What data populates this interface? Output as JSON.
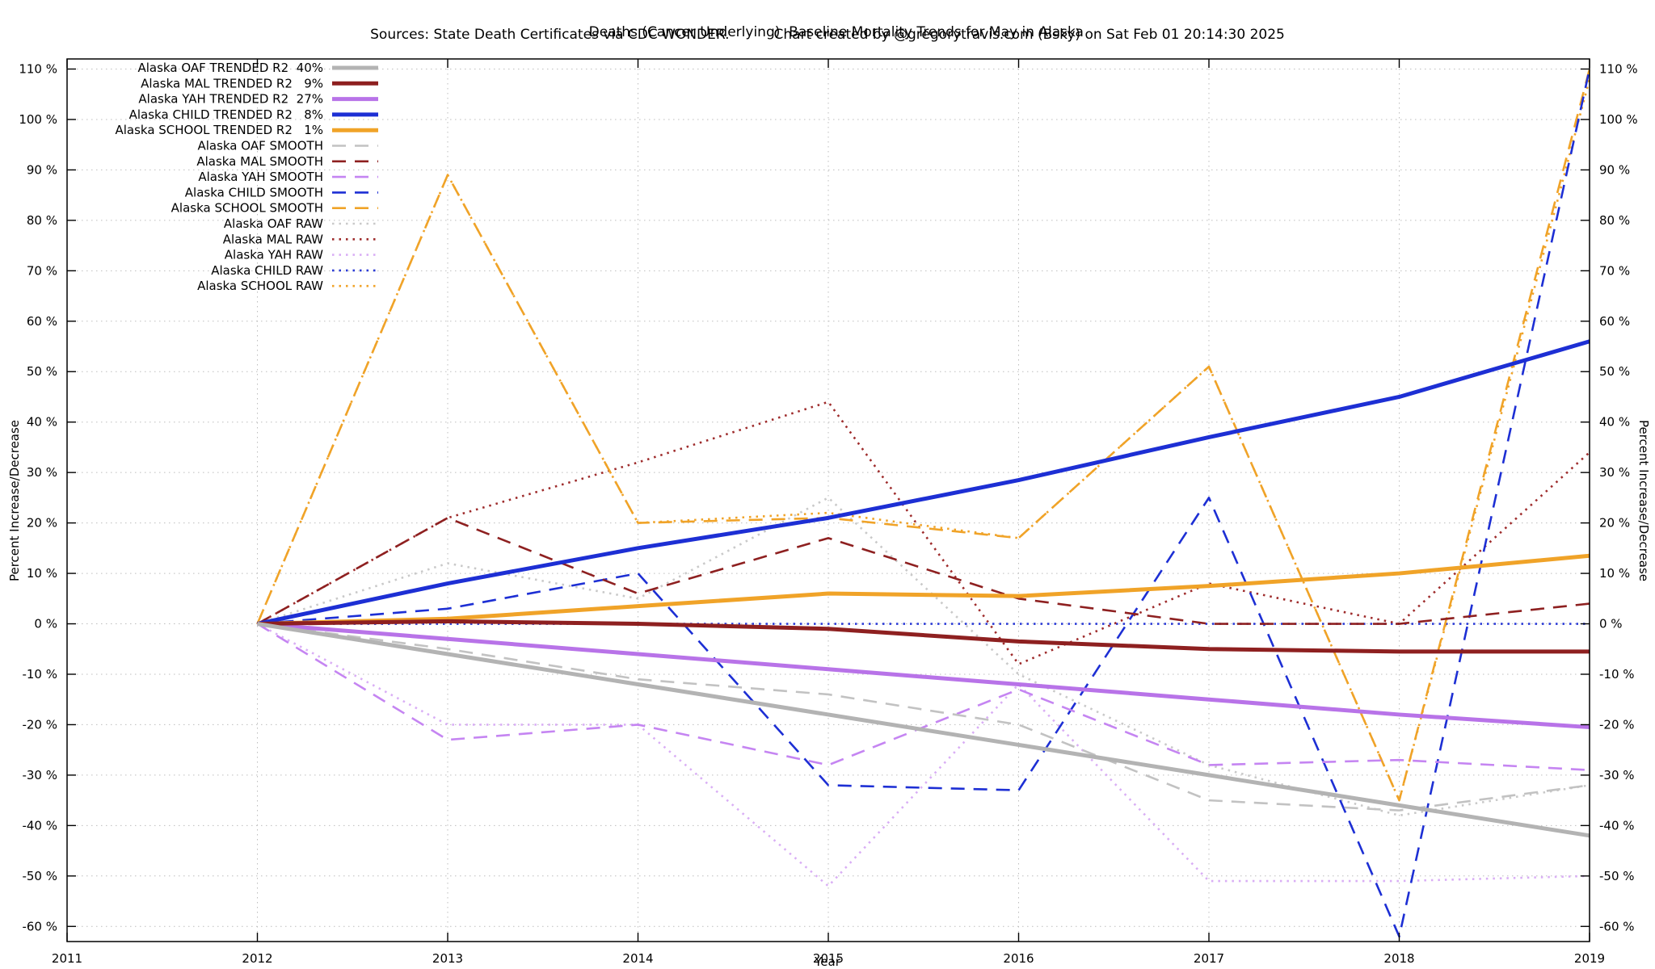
{
  "title": {
    "line1": "Deaths (Cancer Underlying)  Baseline Mortality Trends for May in Alaska",
    "line2_sources": "Sources: State Death Certificates via CDC WONDER.",
    "line2_credit": "Chart created by @gregorytravis.com (Bsky) on Sat Feb 01 20:14:30 2025"
  },
  "axes": {
    "x_label": "Year",
    "y_label_left": "Percent Increase/Decrease",
    "y_label_right": "Percent Increase/Decrease"
  },
  "chart_data": {
    "type": "line",
    "x": [
      2012,
      2013,
      2014,
      2015,
      2016,
      2017,
      2018,
      2019
    ],
    "x_ticks": [
      2011,
      2012,
      2013,
      2014,
      2015,
      2016,
      2017,
      2018,
      2019
    ],
    "xlim": [
      2011,
      2019
    ],
    "y_ticks": [
      -60,
      -50,
      -40,
      -30,
      -20,
      -10,
      0,
      10,
      20,
      30,
      40,
      50,
      60,
      70,
      80,
      90,
      100,
      110
    ],
    "y_tick_suffix": " %",
    "ylim": [
      -63,
      112
    ],
    "grid": true,
    "legend_position": "top-left",
    "series": [
      {
        "id": "oaf-trended",
        "name": "Alaska OAF TRENDED R2  40%",
        "style": "solid",
        "width": 5,
        "color": "#b3b3b3",
        "values": [
          0,
          -6,
          -12,
          -18,
          -24,
          -30,
          -36,
          -42
        ]
      },
      {
        "id": "mal-trended",
        "name": "Alaska MAL TRENDED R2   9%",
        "style": "solid",
        "width": 5,
        "color": "#8e2020",
        "values": [
          0,
          0.5,
          0,
          -1,
          -3.5,
          -5,
          -5.5,
          -5.5
        ]
      },
      {
        "id": "yah-trended",
        "name": "Alaska YAH TRENDED R2  27%",
        "style": "solid",
        "width": 5,
        "color": "#b873e8",
        "values": [
          0,
          -3,
          -6,
          -9,
          -12,
          -15,
          -18,
          -20.5
        ]
      },
      {
        "id": "child-trended",
        "name": "Alaska CHILD TRENDED R2   8%",
        "style": "solid",
        "width": 5,
        "color": "#1d2fd4",
        "values": [
          0,
          8,
          15,
          21,
          28.5,
          37,
          45,
          56
        ]
      },
      {
        "id": "school-trended",
        "name": "Alaska SCHOOL TRENDED R2   1%",
        "style": "solid",
        "width": 5,
        "color": "#f0a328",
        "values": [
          0,
          1,
          3.5,
          6,
          5.5,
          7.5,
          10,
          13.5
        ]
      },
      {
        "id": "oaf-smooth",
        "name": "Alaska OAF SMOOTH",
        "style": "dashed",
        "width": 2.6,
        "color": "#c2c2c2",
        "values": [
          0,
          -5,
          -11,
          -14,
          -20,
          -35,
          -37,
          -32
        ]
      },
      {
        "id": "mal-smooth",
        "name": "Alaska MAL SMOOTH",
        "style": "dashed",
        "width": 2.6,
        "color": "#8e2020",
        "values": [
          0,
          21,
          6,
          17,
          5,
          0,
          0,
          4
        ]
      },
      {
        "id": "yah-smooth",
        "name": "Alaska YAH SMOOTH",
        "style": "dashed",
        "width": 2.6,
        "color": "#c585f2",
        "values": [
          0,
          -23,
          -20,
          -28,
          -13,
          -28,
          -27,
          -29
        ]
      },
      {
        "id": "child-smooth",
        "name": "Alaska CHILD SMOOTH",
        "style": "dashed",
        "width": 2.6,
        "color": "#1d2fd4",
        "values": [
          0,
          3,
          10,
          -32,
          -33,
          25,
          -62,
          110
        ]
      },
      {
        "id": "school-smooth",
        "name": "Alaska SCHOOL SMOOTH",
        "style": "dashed",
        "width": 2.6,
        "color": "#f0a328",
        "values": [
          0,
          89,
          20,
          21,
          17,
          51,
          -35,
          110
        ]
      },
      {
        "id": "oaf-raw",
        "name": "Alaska OAF RAW",
        "style": "dotted",
        "width": 2.6,
        "color": "#c9c9c9",
        "values": [
          0,
          12,
          5,
          25,
          -10,
          -28,
          -38,
          -32
        ]
      },
      {
        "id": "mal-raw",
        "name": "Alaska MAL RAW",
        "style": "dotted",
        "width": 2.6,
        "color": "#9e2b2b",
        "values": [
          0,
          21,
          32,
          44,
          -8,
          8,
          0,
          34
        ]
      },
      {
        "id": "yah-raw",
        "name": "Alaska YAH RAW",
        "style": "dotted",
        "width": 2.6,
        "color": "#d9aef5",
        "values": [
          0,
          -20,
          -20,
          -52,
          -12,
          -51,
          -51,
          -50
        ]
      },
      {
        "id": "child-raw",
        "name": "Alaska CHILD RAW",
        "style": "dotted",
        "width": 2.6,
        "color": "#2b3bd6",
        "values": [
          0,
          0,
          0,
          0,
          0,
          0,
          0,
          0
        ]
      },
      {
        "id": "school-raw",
        "name": "Alaska SCHOOL RAW",
        "style": "dotted",
        "width": 2.6,
        "color": "#f0a328",
        "values": [
          0,
          89,
          20,
          22,
          17,
          51,
          -35,
          108
        ]
      }
    ]
  }
}
